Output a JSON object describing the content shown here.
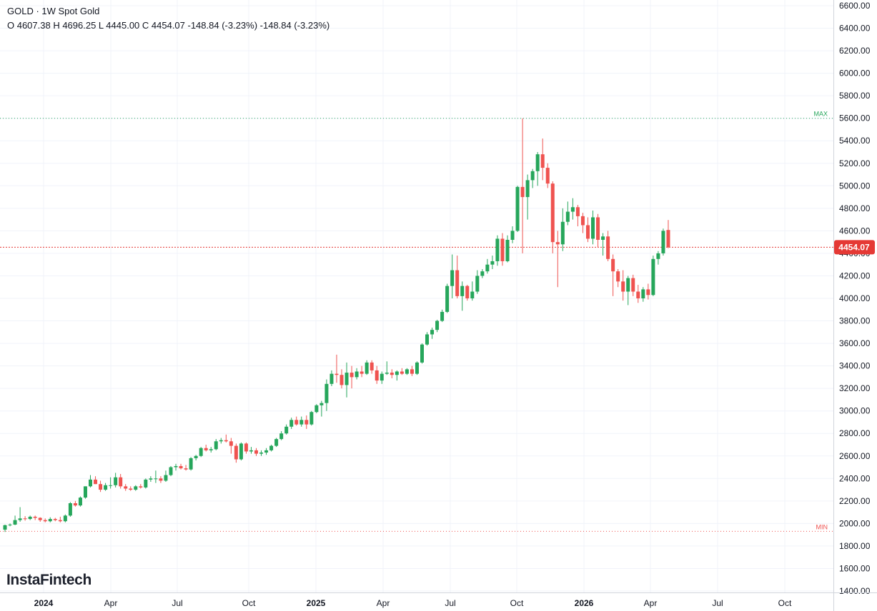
{
  "header": {
    "title": "GOLD · 1W Spot Gold",
    "ohlc_line": "O 4607.38 H 4696.25 L 4445.00 C 4454.07 -148.84 (-3.23%) -148.84 (-3.23%)"
  },
  "logo": "InstaFintech",
  "colors": {
    "up": "#26a65b",
    "down": "#ef5350",
    "max_line": "#26a65b",
    "min_line": "#ef5350",
    "last_price_line": "#e53935",
    "grid": "#f0f3fa",
    "axis_border": "#d1d4dc"
  },
  "chart_data": {
    "type": "candlestick",
    "symbol": "GOLD",
    "interval": "1W",
    "ylim": [
      1400,
      6600
    ],
    "y_ticks": [
      "6600.00",
      "6400.00",
      "6200.00",
      "6000.00",
      "5800.00",
      "5600.00",
      "5400.00",
      "5200.00",
      "5000.00",
      "4800.00",
      "4600.00",
      "4400.00",
      "4200.00",
      "4000.00",
      "3800.00",
      "3600.00",
      "3400.00",
      "3200.00",
      "3000.00",
      "2800.00",
      "2600.00",
      "2400.00",
      "2200.00",
      "2000.00",
      "1800.00",
      "1600.00",
      "1400.00"
    ],
    "x_ticks": [
      {
        "label": "2024",
        "year": true
      },
      {
        "label": "Apr",
        "year": false
      },
      {
        "label": "Jul",
        "year": false
      },
      {
        "label": "Oct",
        "year": false
      },
      {
        "label": "2025",
        "year": true
      },
      {
        "label": "Apr",
        "year": false
      },
      {
        "label": "Jul",
        "year": false
      },
      {
        "label": "Oct",
        "year": false
      },
      {
        "label": "2026",
        "year": true
      },
      {
        "label": "Apr",
        "year": false
      },
      {
        "label": "Jul",
        "year": false
      },
      {
        "label": "Oct",
        "year": false
      }
    ],
    "last_price": 4454.07,
    "last_price_label": "4454.07",
    "max": {
      "label": "MAX",
      "value": 5600
    },
    "min": {
      "label": "MIN",
      "value": 1930
    },
    "candles": [
      {
        "o": 1945,
        "h": 1990,
        "l": 1925,
        "c": 1985
      },
      {
        "o": 1985,
        "h": 2000,
        "l": 1975,
        "c": 1990
      },
      {
        "o": 1990,
        "h": 2070,
        "l": 1985,
        "c": 2030
      },
      {
        "o": 2030,
        "h": 2145,
        "l": 2015,
        "c": 2045
      },
      {
        "o": 2045,
        "h": 2065,
        "l": 2025,
        "c": 2040
      },
      {
        "o": 2040,
        "h": 2070,
        "l": 2030,
        "c": 2060
      },
      {
        "o": 2060,
        "h": 2070,
        "l": 2030,
        "c": 2050
      },
      {
        "o": 2050,
        "h": 2055,
        "l": 2015,
        "c": 2030
      },
      {
        "o": 2030,
        "h": 2045,
        "l": 2010,
        "c": 2020
      },
      {
        "o": 2020,
        "h": 2055,
        "l": 2010,
        "c": 2040
      },
      {
        "o": 2040,
        "h": 2050,
        "l": 2020,
        "c": 2030
      },
      {
        "o": 2030,
        "h": 2060,
        "l": 2010,
        "c": 2020
      },
      {
        "o": 2020,
        "h": 2080,
        "l": 2010,
        "c": 2070
      },
      {
        "o": 2070,
        "h": 2190,
        "l": 2060,
        "c": 2180
      },
      {
        "o": 2180,
        "h": 2200,
        "l": 2150,
        "c": 2160
      },
      {
        "o": 2160,
        "h": 2240,
        "l": 2150,
        "c": 2230
      },
      {
        "o": 2230,
        "h": 2330,
        "l": 2220,
        "c": 2330
      },
      {
        "o": 2330,
        "h": 2430,
        "l": 2320,
        "c": 2390
      },
      {
        "o": 2390,
        "h": 2420,
        "l": 2350,
        "c": 2350
      },
      {
        "o": 2350,
        "h": 2380,
        "l": 2280,
        "c": 2300
      },
      {
        "o": 2300,
        "h": 2360,
        "l": 2290,
        "c": 2340
      },
      {
        "o": 2340,
        "h": 2410,
        "l": 2310,
        "c": 2340
      },
      {
        "o": 2340,
        "h": 2450,
        "l": 2320,
        "c": 2410
      },
      {
        "o": 2410,
        "h": 2440,
        "l": 2310,
        "c": 2330
      },
      {
        "o": 2330,
        "h": 2350,
        "l": 2290,
        "c": 2310
      },
      {
        "o": 2310,
        "h": 2330,
        "l": 2290,
        "c": 2300
      },
      {
        "o": 2300,
        "h": 2340,
        "l": 2290,
        "c": 2330
      },
      {
        "o": 2330,
        "h": 2350,
        "l": 2310,
        "c": 2320
      },
      {
        "o": 2320,
        "h": 2400,
        "l": 2310,
        "c": 2390
      },
      {
        "o": 2390,
        "h": 2420,
        "l": 2370,
        "c": 2400
      },
      {
        "o": 2400,
        "h": 2470,
        "l": 2360,
        "c": 2400
      },
      {
        "o": 2400,
        "h": 2420,
        "l": 2360,
        "c": 2380
      },
      {
        "o": 2380,
        "h": 2470,
        "l": 2370,
        "c": 2430
      },
      {
        "o": 2430,
        "h": 2510,
        "l": 2420,
        "c": 2500
      },
      {
        "o": 2500,
        "h": 2530,
        "l": 2470,
        "c": 2510
      },
      {
        "o": 2510,
        "h": 2530,
        "l": 2480,
        "c": 2490
      },
      {
        "o": 2490,
        "h": 2520,
        "l": 2470,
        "c": 2480
      },
      {
        "o": 2480,
        "h": 2590,
        "l": 2470,
        "c": 2580
      },
      {
        "o": 2580,
        "h": 2610,
        "l": 2560,
        "c": 2600
      },
      {
        "o": 2600,
        "h": 2680,
        "l": 2590,
        "c": 2670
      },
      {
        "o": 2670,
        "h": 2700,
        "l": 2640,
        "c": 2650
      },
      {
        "o": 2650,
        "h": 2680,
        "l": 2630,
        "c": 2660
      },
      {
        "o": 2660,
        "h": 2750,
        "l": 2650,
        "c": 2730
      },
      {
        "o": 2730,
        "h": 2760,
        "l": 2710,
        "c": 2740
      },
      {
        "o": 2740,
        "h": 2790,
        "l": 2720,
        "c": 2730
      },
      {
        "o": 2730,
        "h": 2760,
        "l": 2620,
        "c": 2690
      },
      {
        "o": 2690,
        "h": 2710,
        "l": 2540,
        "c": 2570
      },
      {
        "o": 2570,
        "h": 2720,
        "l": 2560,
        "c": 2710
      },
      {
        "o": 2710,
        "h": 2720,
        "l": 2620,
        "c": 2640
      },
      {
        "o": 2640,
        "h": 2680,
        "l": 2620,
        "c": 2650
      },
      {
        "o": 2650,
        "h": 2670,
        "l": 2600,
        "c": 2620
      },
      {
        "o": 2620,
        "h": 2650,
        "l": 2600,
        "c": 2630
      },
      {
        "o": 2630,
        "h": 2670,
        "l": 2610,
        "c": 2650
      },
      {
        "o": 2650,
        "h": 2700,
        "l": 2640,
        "c": 2690
      },
      {
        "o": 2690,
        "h": 2760,
        "l": 2680,
        "c": 2750
      },
      {
        "o": 2750,
        "h": 2820,
        "l": 2740,
        "c": 2800
      },
      {
        "o": 2800,
        "h": 2880,
        "l": 2790,
        "c": 2860
      },
      {
        "o": 2860,
        "h": 2940,
        "l": 2840,
        "c": 2920
      },
      {
        "o": 2920,
        "h": 2950,
        "l": 2870,
        "c": 2880
      },
      {
        "o": 2880,
        "h": 2950,
        "l": 2860,
        "c": 2920
      },
      {
        "o": 2920,
        "h": 2960,
        "l": 2840,
        "c": 2880
      },
      {
        "o": 2880,
        "h": 3000,
        "l": 2870,
        "c": 2990
      },
      {
        "o": 2990,
        "h": 3060,
        "l": 2980,
        "c": 3050
      },
      {
        "o": 3050,
        "h": 3090,
        "l": 2950,
        "c": 3070
      },
      {
        "o": 3070,
        "h": 3280,
        "l": 3000,
        "c": 3240
      },
      {
        "o": 3240,
        "h": 3360,
        "l": 3220,
        "c": 3330
      },
      {
        "o": 3330,
        "h": 3500,
        "l": 3250,
        "c": 3320
      },
      {
        "o": 3320,
        "h": 3370,
        "l": 3200,
        "c": 3230
      },
      {
        "o": 3230,
        "h": 3430,
        "l": 3120,
        "c": 3340
      },
      {
        "o": 3340,
        "h": 3400,
        "l": 3200,
        "c": 3300
      },
      {
        "o": 3300,
        "h": 3380,
        "l": 3280,
        "c": 3350
      },
      {
        "o": 3350,
        "h": 3400,
        "l": 3300,
        "c": 3330
      },
      {
        "o": 3330,
        "h": 3450,
        "l": 3320,
        "c": 3430
      },
      {
        "o": 3430,
        "h": 3450,
        "l": 3330,
        "c": 3360
      },
      {
        "o": 3360,
        "h": 3400,
        "l": 3240,
        "c": 3270
      },
      {
        "o": 3270,
        "h": 3350,
        "l": 3240,
        "c": 3330
      },
      {
        "o": 3330,
        "h": 3440,
        "l": 3320,
        "c": 3340
      },
      {
        "o": 3340,
        "h": 3370,
        "l": 3290,
        "c": 3320
      },
      {
        "o": 3320,
        "h": 3360,
        "l": 3270,
        "c": 3350
      },
      {
        "o": 3350,
        "h": 3380,
        "l": 3320,
        "c": 3330
      },
      {
        "o": 3330,
        "h": 3380,
        "l": 3320,
        "c": 3370
      },
      {
        "o": 3370,
        "h": 3400,
        "l": 3310,
        "c": 3330
      },
      {
        "o": 3330,
        "h": 3440,
        "l": 3320,
        "c": 3430
      },
      {
        "o": 3430,
        "h": 3600,
        "l": 3420,
        "c": 3590
      },
      {
        "o": 3590,
        "h": 3700,
        "l": 3580,
        "c": 3680
      },
      {
        "o": 3680,
        "h": 3740,
        "l": 3640,
        "c": 3720
      },
      {
        "o": 3720,
        "h": 3810,
        "l": 3700,
        "c": 3800
      },
      {
        "o": 3800,
        "h": 3900,
        "l": 3790,
        "c": 3880
      },
      {
        "o": 3880,
        "h": 4130,
        "l": 3870,
        "c": 4110
      },
      {
        "o": 4110,
        "h": 4390,
        "l": 4000,
        "c": 4250
      },
      {
        "o": 4250,
        "h": 4380,
        "l": 4000,
        "c": 4020
      },
      {
        "o": 4020,
        "h": 4150,
        "l": 3890,
        "c": 4110
      },
      {
        "o": 4110,
        "h": 4120,
        "l": 3980,
        "c": 4000
      },
      {
        "o": 4000,
        "h": 4150,
        "l": 3980,
        "c": 4060
      },
      {
        "o": 4060,
        "h": 4250,
        "l": 4040,
        "c": 4200
      },
      {
        "o": 4200,
        "h": 4260,
        "l": 4180,
        "c": 4240
      },
      {
        "o": 4240,
        "h": 4350,
        "l": 4220,
        "c": 4300
      },
      {
        "o": 4300,
        "h": 4380,
        "l": 4260,
        "c": 4330
      },
      {
        "o": 4330,
        "h": 4560,
        "l": 4290,
        "c": 4530
      },
      {
        "o": 4530,
        "h": 4580,
        "l": 4290,
        "c": 4330
      },
      {
        "o": 4330,
        "h": 4560,
        "l": 4320,
        "c": 4520
      },
      {
        "o": 4520,
        "h": 4640,
        "l": 4490,
        "c": 4600
      },
      {
        "o": 4600,
        "h": 5000,
        "l": 4590,
        "c": 4990
      },
      {
        "o": 4990,
        "h": 5600,
        "l": 4400,
        "c": 4900
      },
      {
        "o": 4900,
        "h": 5100,
        "l": 4700,
        "c": 5050
      },
      {
        "o": 5050,
        "h": 5150,
        "l": 4980,
        "c": 5130
      },
      {
        "o": 5130,
        "h": 5300,
        "l": 5000,
        "c": 5280
      },
      {
        "o": 5280,
        "h": 5420,
        "l": 5050,
        "c": 5160
      },
      {
        "o": 5160,
        "h": 5200,
        "l": 4980,
        "c": 5020
      },
      {
        "o": 5020,
        "h": 5040,
        "l": 4400,
        "c": 4500
      },
      {
        "o": 4500,
        "h": 4600,
        "l": 4100,
        "c": 4480
      },
      {
        "o": 4480,
        "h": 4800,
        "l": 4420,
        "c": 4680
      },
      {
        "o": 4680,
        "h": 4860,
        "l": 4650,
        "c": 4770
      },
      {
        "o": 4770,
        "h": 4890,
        "l": 4700,
        "c": 4810
      },
      {
        "o": 4810,
        "h": 4830,
        "l": 4640,
        "c": 4730
      },
      {
        "o": 4730,
        "h": 4760,
        "l": 4580,
        "c": 4650
      },
      {
        "o": 4650,
        "h": 4720,
        "l": 4500,
        "c": 4530
      },
      {
        "o": 4530,
        "h": 4780,
        "l": 4480,
        "c": 4720
      },
      {
        "o": 4720,
        "h": 4750,
        "l": 4450,
        "c": 4520
      },
      {
        "o": 4520,
        "h": 4580,
        "l": 4380,
        "c": 4550
      },
      {
        "o": 4550,
        "h": 4600,
        "l": 4330,
        "c": 4350
      },
      {
        "o": 4350,
        "h": 4390,
        "l": 4020,
        "c": 4240
      },
      {
        "o": 4240,
        "h": 4260,
        "l": 4100,
        "c": 4150
      },
      {
        "o": 4150,
        "h": 4250,
        "l": 3980,
        "c": 4060
      },
      {
        "o": 4060,
        "h": 4200,
        "l": 3940,
        "c": 4180
      },
      {
        "o": 4180,
        "h": 4210,
        "l": 4020,
        "c": 4060
      },
      {
        "o": 4060,
        "h": 4120,
        "l": 3960,
        "c": 4000
      },
      {
        "o": 4000,
        "h": 4100,
        "l": 3970,
        "c": 4080
      },
      {
        "o": 4080,
        "h": 4130,
        "l": 3990,
        "c": 4030
      },
      {
        "o": 4030,
        "h": 4380,
        "l": 4020,
        "c": 4350
      },
      {
        "o": 4350,
        "h": 4420,
        "l": 4300,
        "c": 4400
      },
      {
        "o": 4400,
        "h": 4620,
        "l": 4380,
        "c": 4600
      },
      {
        "o": 4607.38,
        "h": 4696.25,
        "l": 4445.0,
        "c": 4454.07
      }
    ]
  }
}
